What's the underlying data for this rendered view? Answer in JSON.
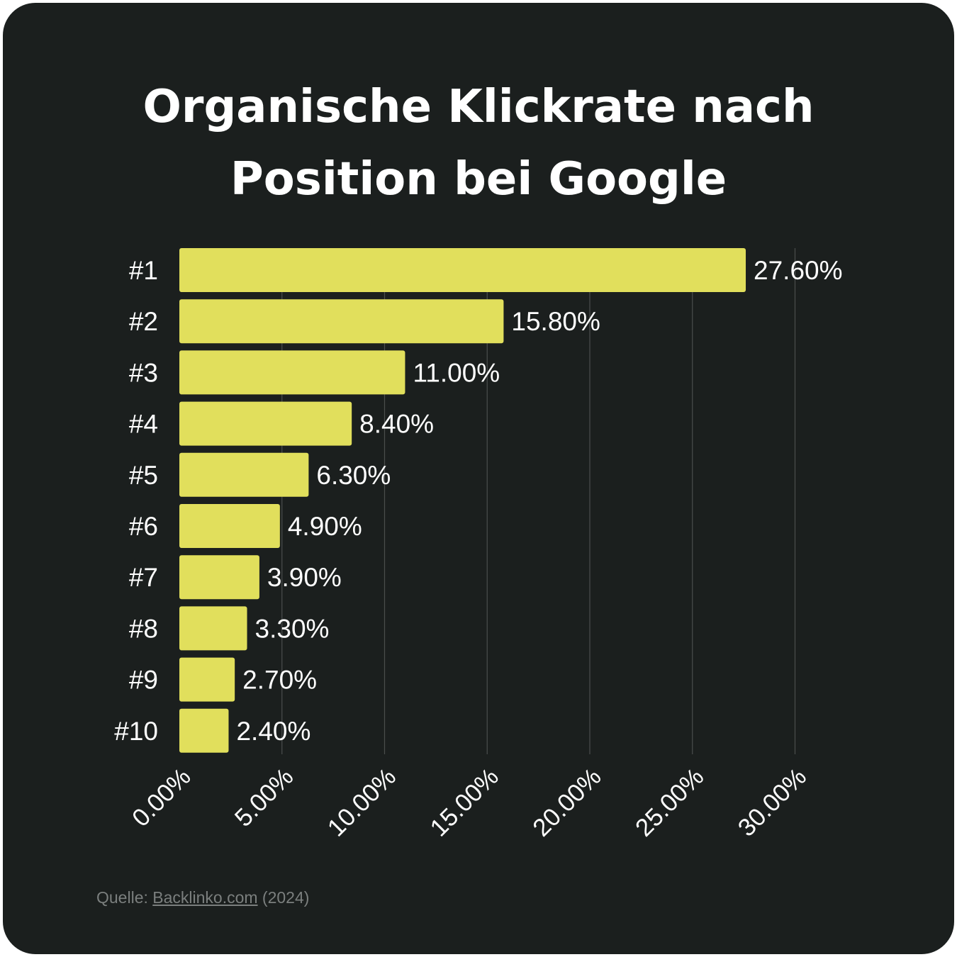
{
  "colors": {
    "background": "#1b1f1e",
    "bar": "#e1df5c",
    "text": "#ffffff",
    "grid": "#4a4e4d",
    "source_text": "#7b7f7e"
  },
  "chart_data": {
    "type": "bar",
    "orientation": "horizontal",
    "title_lines": [
      "Organische Klickrate nach",
      "Position bei Google"
    ],
    "categories": [
      "#1",
      "#2",
      "#3",
      "#4",
      "#5",
      "#6",
      "#7",
      "#8",
      "#9",
      "#10"
    ],
    "values": [
      27.6,
      15.8,
      11.0,
      8.4,
      6.3,
      4.9,
      3.9,
      3.3,
      2.7,
      2.4
    ],
    "value_labels": [
      "27.60%",
      "15.80%",
      "11.00%",
      "8.40%",
      "6.30%",
      "4.90%",
      "3.90%",
      "3.30%",
      "2.70%",
      "2.40%"
    ],
    "xticks": [
      0,
      5,
      10,
      15,
      20,
      25,
      30
    ],
    "xtick_labels": [
      "0.00%",
      "5.00%",
      "10.00%",
      "15.00%",
      "20.00%",
      "25.00%",
      "30.00%"
    ],
    "xlim": [
      0,
      30
    ],
    "xlabel": "",
    "ylabel": "",
    "grid": "vertical",
    "legend": "none"
  },
  "source": {
    "prefix": "Quelle: ",
    "link_text": "Backlinko.com",
    "suffix": " (2024)"
  }
}
